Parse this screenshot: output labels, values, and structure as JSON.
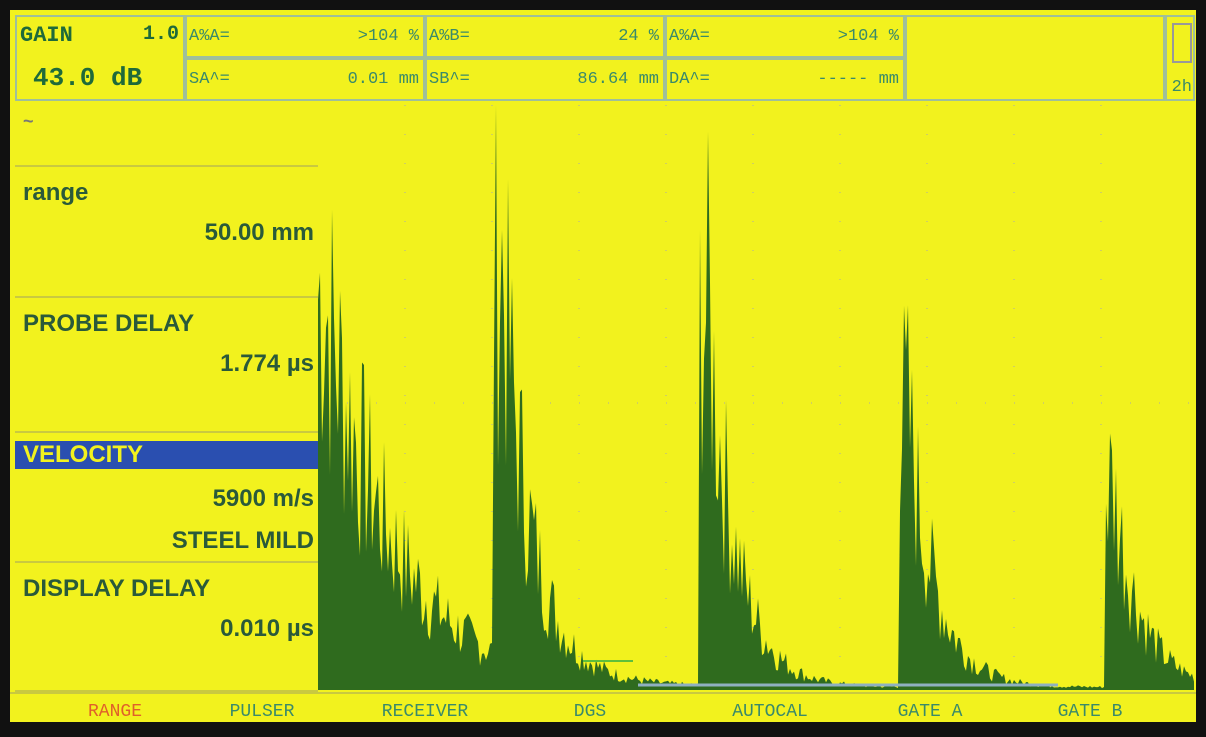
{
  "header": {
    "gain_label": "GAIN",
    "gain_step": "1.0",
    "gain_value": "43.0 dB",
    "readings": [
      {
        "label": "A%A=",
        "value": ">104 %"
      },
      {
        "label": "A%B=",
        "value": "24 %"
      },
      {
        "label": "A%A=",
        "value": ">104 %"
      },
      {
        "label": "SA^=",
        "value": "0.01 mm"
      },
      {
        "label": "SB^=",
        "value": "86.64 mm"
      },
      {
        "label": "DA^=",
        "value": "----- mm"
      }
    ],
    "battery": "2h"
  },
  "panel": [
    {
      "title": "range",
      "lines": [
        "50.00 mm"
      ]
    },
    {
      "title": "PROBE DELAY",
      "lines": [
        "1.774 µs"
      ]
    },
    {
      "title": "VELOCITY",
      "lines": [
        "5900 m/s",
        "STEEL MILD"
      ]
    },
    {
      "title": "DISPLAY DELAY",
      "lines": [
        "0.010 µs"
      ]
    }
  ],
  "menu": [
    "RANGE",
    "PULSER",
    "RECEIVER",
    "DGS",
    "AUTOCAL",
    "GATE A",
    "GATE B"
  ]
}
